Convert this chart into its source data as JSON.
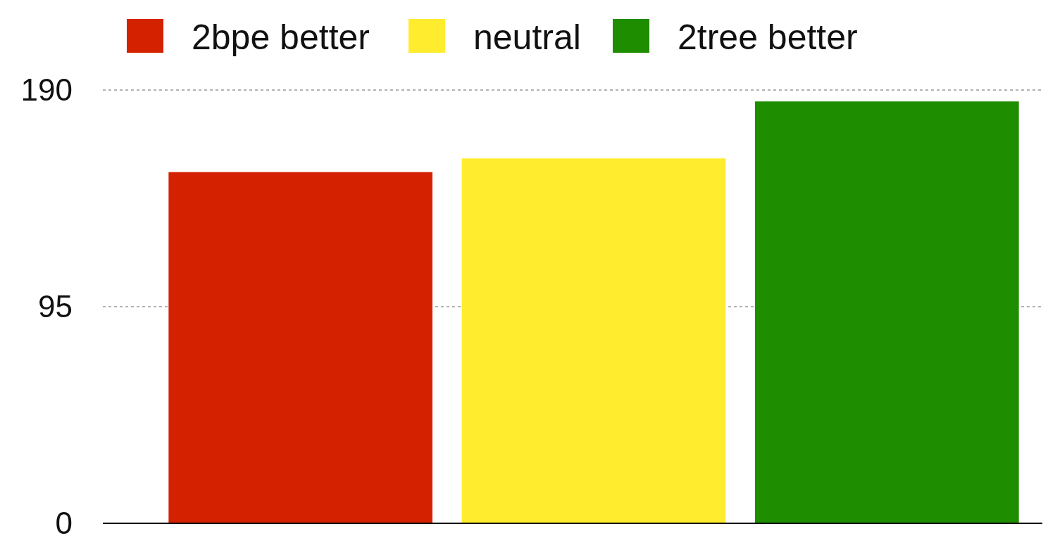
{
  "chart_data": {
    "type": "bar",
    "categories": [
      null
    ],
    "series": [
      {
        "name": "2bpe better",
        "color": "#d42200",
        "values": [
          154
        ]
      },
      {
        "name": "neutral",
        "color": "#ffec2e",
        "values": [
          160
        ]
      },
      {
        "name": "2tree better",
        "color": "#1f8d00",
        "values": [
          185
        ]
      }
    ],
    "ylim": [
      0,
      190
    ],
    "yticks": [
      0,
      95,
      190
    ],
    "grid": "y",
    "legend": "top"
  }
}
